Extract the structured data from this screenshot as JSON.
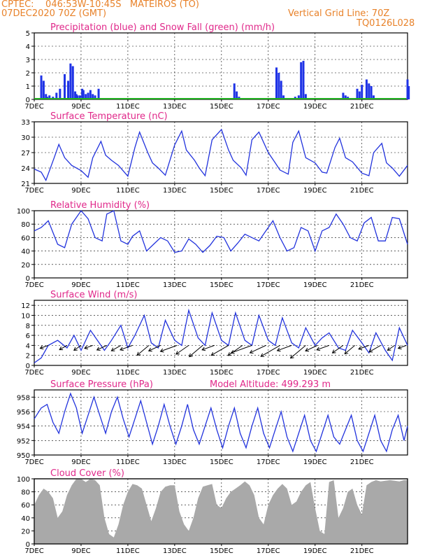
{
  "header": {
    "line1": "CPTEC:    046:53W-10:45S   MATEIROS (TO)",
    "line2_left": "07DEC2020 70Z (GMT)",
    "line2_right": "Vertical Grid Line: 70Z",
    "code": "TQ0126L028"
  },
  "colors": {
    "header": "#e8822a",
    "title": "#e0288a",
    "line": "#2233dd",
    "bar": "#1f33e6",
    "snow": "#20b020",
    "cloud": "#a9a9a9",
    "arrow": "#000000"
  },
  "x_ticks": [
    "7DEC",
    "9DEC",
    "11DEC",
    "13DEC",
    "15DEC",
    "17DEC",
    "19DEC",
    "21DEC"
  ],
  "chart_data": [
    {
      "id": "precip",
      "type": "bar",
      "title": "Precipitation (blue) and Snow Fall (green) (mm/h)",
      "ylim": [
        0,
        5
      ],
      "yticks": [
        "0",
        "1",
        "2",
        "3",
        "4",
        "5"
      ],
      "series": [
        {
          "name": "Precipitation",
          "x": [
            0.3,
            0.4,
            0.5,
            0.55,
            0.65,
            0.8,
            0.95,
            1.1,
            1.3,
            1.45,
            1.55,
            1.65,
            1.75,
            1.8,
            1.85,
            1.95,
            2.05,
            2.1,
            2.2,
            2.3,
            2.4,
            2.5,
            2.6,
            2.75,
            8.55,
            8.65,
            8.75,
            10.35,
            10.45,
            10.55,
            10.65,
            11.15,
            11.3,
            11.4,
            11.5,
            11.6,
            13.2,
            13.3,
            13.4,
            13.8,
            13.9,
            14.0,
            14.2,
            14.3,
            14.4,
            14.5,
            15.95,
            16.0
          ],
          "values": [
            1.8,
            1.4,
            0.4,
            0.2,
            0.3,
            0.2,
            0.5,
            0.8,
            1.9,
            1.4,
            2.7,
            2.5,
            0.6,
            0.4,
            0.3,
            0.3,
            0.8,
            0.7,
            0.4,
            0.5,
            0.7,
            0.4,
            0.3,
            0.8,
            1.2,
            0.6,
            0.2,
            2.4,
            2.0,
            1.4,
            0.3,
            0.2,
            0.3,
            2.8,
            2.9,
            0.4,
            0.5,
            0.3,
            0.2,
            0.8,
            0.6,
            1.1,
            1.5,
            1.2,
            1.0,
            0.3,
            1.5,
            1.0
          ]
        },
        {
          "name": "Snow Fall",
          "x": [
            0,
            15.9
          ],
          "values": [
            0,
            0
          ]
        }
      ]
    },
    {
      "id": "temp",
      "type": "line",
      "title": "Surface Temperature (nC)",
      "ylim": [
        21,
        33
      ],
      "yticks": [
        "21",
        "24",
        "27",
        "30",
        "33"
      ],
      "x": [
        0,
        0.3,
        0.5,
        0.85,
        1.05,
        1.3,
        1.6,
        2.0,
        2.3,
        2.5,
        2.85,
        3.05,
        3.3,
        3.6,
        4.0,
        4.3,
        4.5,
        4.85,
        5.05,
        5.3,
        5.6,
        6.0,
        6.3,
        6.5,
        6.85,
        7.05,
        7.3,
        7.6,
        8.0,
        8.3,
        8.5,
        8.85,
        9.05,
        9.3,
        9.6,
        10.0,
        10.3,
        10.5,
        10.85,
        11.05,
        11.3,
        11.6,
        12.0,
        12.3,
        12.5,
        12.85,
        13.05,
        13.3,
        13.6,
        14.0,
        14.3,
        14.5,
        14.85,
        15.05,
        15.3,
        15.6,
        15.95
      ],
      "values": [
        23.8,
        23.2,
        21.6,
        26.0,
        28.6,
        26.0,
        24.5,
        23.5,
        22.2,
        26.0,
        29.2,
        26.5,
        25.5,
        24.5,
        22.4,
        28.0,
        31.0,
        27.0,
        25.0,
        24.0,
        22.6,
        28.5,
        31.2,
        27.5,
        25.5,
        24.0,
        22.5,
        29.5,
        31.5,
        27.5,
        25.5,
        24.0,
        22.6,
        29.5,
        31.0,
        27.0,
        25.0,
        23.6,
        22.8,
        29.0,
        31.2,
        26.0,
        25.0,
        23.2,
        23.0,
        28.0,
        29.8,
        26.0,
        25.2,
        23.0,
        22.5,
        27.0,
        28.8,
        25.0,
        24.0,
        22.4,
        24.5
      ]
    },
    {
      "id": "rh",
      "type": "line",
      "title": "Relative Humidity (%)",
      "ylim": [
        0,
        100
      ],
      "yticks": [
        "0",
        "20",
        "40",
        "60",
        "80",
        "100"
      ],
      "x": [
        0,
        0.3,
        0.6,
        1.0,
        1.3,
        1.6,
        2.0,
        2.3,
        2.6,
        2.9,
        3.1,
        3.4,
        3.7,
        4.0,
        4.2,
        4.5,
        4.8,
        5.1,
        5.4,
        5.7,
        6.0,
        6.3,
        6.6,
        6.9,
        7.2,
        7.5,
        7.8,
        8.1,
        8.4,
        8.7,
        9.0,
        9.3,
        9.6,
        9.9,
        10.2,
        10.5,
        10.8,
        11.1,
        11.4,
        11.7,
        12.0,
        12.3,
        12.6,
        12.9,
        13.2,
        13.5,
        13.8,
        14.1,
        14.4,
        14.7,
        15.0,
        15.3,
        15.6,
        15.95
      ],
      "values": [
        70,
        75,
        85,
        50,
        45,
        80,
        100,
        88,
        60,
        55,
        95,
        100,
        55,
        50,
        62,
        70,
        40,
        50,
        60,
        55,
        38,
        40,
        58,
        50,
        38,
        48,
        62,
        60,
        40,
        52,
        65,
        60,
        55,
        70,
        85,
        60,
        40,
        45,
        75,
        70,
        40,
        70,
        75,
        95,
        80,
        60,
        55,
        82,
        90,
        55,
        55,
        90,
        88,
        50
      ]
    },
    {
      "id": "wind",
      "type": "line",
      "title": "Surface Wind (m/s)",
      "ylim": [
        0,
        13
      ],
      "yticks": [
        "0",
        "2",
        "4",
        "6",
        "8",
        "10",
        "12"
      ],
      "x": [
        0,
        0.3,
        0.6,
        1.0,
        1.4,
        1.7,
        2.0,
        2.4,
        2.7,
        3.0,
        3.3,
        3.7,
        4.0,
        4.3,
        4.7,
        5.0,
        5.3,
        5.6,
        6.0,
        6.3,
        6.6,
        7.0,
        7.3,
        7.6,
        8.0,
        8.3,
        8.6,
        9.0,
        9.3,
        9.6,
        10.0,
        10.3,
        10.6,
        11.0,
        11.3,
        11.6,
        12.0,
        12.3,
        12.6,
        13.0,
        13.3,
        13.6,
        14.0,
        14.3,
        14.6,
        15.0,
        15.3,
        15.6,
        15.95
      ],
      "values": [
        0.5,
        1.5,
        4.0,
        5.0,
        3.5,
        6.0,
        3.0,
        7.0,
        5.0,
        3.0,
        5.0,
        8.0,
        3.5,
        6.0,
        10.0,
        4.5,
        3.5,
        9.0,
        5.0,
        4.0,
        11.0,
        5.5,
        4.0,
        10.5,
        5.0,
        4.0,
        10.5,
        5.0,
        4.0,
        10.0,
        5.0,
        4.0,
        9.5,
        4.5,
        3.5,
        7.5,
        4.0,
        5.5,
        6.5,
        3.5,
        3.0,
        7.0,
        4.5,
        2.5,
        6.5,
        3.0,
        1.0,
        7.5,
        4.0
      ],
      "arrows_x": [
        0.6,
        1.4,
        2.0,
        2.5,
        3.1,
        3.7,
        4.2,
        4.9,
        5.4,
        6.1,
        6.6,
        7.2,
        7.7,
        8.3,
        8.9,
        9.3,
        9.9,
        10.5,
        11.0,
        11.6,
        12.1,
        12.6,
        13.2,
        13.7,
        14.3,
        14.8,
        15.4,
        15.9
      ],
      "arrows_speed": [
        2,
        2,
        2,
        2,
        3,
        3,
        4,
        5,
        4,
        6,
        5,
        6,
        4,
        7,
        6,
        8,
        6,
        8,
        5,
        7,
        4,
        4,
        4,
        4,
        3,
        4,
        2,
        2
      ]
    },
    {
      "id": "pres",
      "type": "line",
      "title": "Surface Pressure (hPa)",
      "subtitle": "Model Altitude: 499.293 m",
      "ylim": [
        950,
        959
      ],
      "yticks": [
        "950",
        "952",
        "954",
        "956",
        "958"
      ],
      "x": [
        0,
        0.3,
        0.55,
        0.8,
        1.05,
        1.3,
        1.55,
        1.8,
        2.05,
        2.3,
        2.55,
        2.8,
        3.05,
        3.3,
        3.55,
        3.8,
        4.05,
        4.3,
        4.55,
        4.8,
        5.05,
        5.3,
        5.55,
        5.8,
        6.05,
        6.3,
        6.55,
        6.8,
        7.05,
        7.3,
        7.55,
        7.8,
        8.05,
        8.3,
        8.55,
        8.8,
        9.05,
        9.3,
        9.55,
        9.8,
        10.05,
        10.3,
        10.55,
        10.8,
        11.05,
        11.3,
        11.55,
        11.8,
        12.05,
        12.3,
        12.55,
        12.8,
        13.05,
        13.3,
        13.55,
        13.8,
        14.05,
        14.3,
        14.55,
        14.8,
        15.05,
        15.3,
        15.55,
        15.8,
        15.95
      ],
      "values": [
        955,
        956.5,
        957,
        954.5,
        953,
        956,
        958.5,
        956.5,
        953,
        955.5,
        958,
        955.5,
        953,
        956,
        958,
        955,
        952.5,
        955,
        957.5,
        954.5,
        951.5,
        954,
        957,
        954,
        951.5,
        954,
        957,
        953.5,
        951.5,
        954,
        956.5,
        953.5,
        951,
        954,
        956.5,
        953,
        951,
        954,
        956.5,
        953,
        951,
        953.5,
        956,
        952.5,
        950.5,
        953,
        955.5,
        952,
        950.5,
        953,
        955.5,
        952.5,
        951.5,
        953.5,
        955.5,
        952,
        950.5,
        953,
        955.5,
        952,
        950.5,
        953.5,
        955.5,
        952,
        954
      ]
    },
    {
      "id": "cloud",
      "type": "area",
      "title": "Cloud Cover (%)",
      "ylim": [
        0,
        100
      ],
      "yticks": [
        "0",
        "20",
        "40",
        "60",
        "80",
        "100"
      ],
      "x": [
        0,
        0.2,
        0.4,
        0.6,
        0.8,
        1.0,
        1.2,
        1.4,
        1.6,
        1.8,
        2.0,
        2.2,
        2.4,
        2.6,
        2.8,
        3.0,
        3.2,
        3.4,
        3.6,
        3.8,
        4.0,
        4.2,
        4.4,
        4.6,
        4.8,
        5.0,
        5.2,
        5.4,
        5.6,
        5.8,
        6.0,
        6.2,
        6.4,
        6.6,
        6.8,
        7.0,
        7.2,
        7.4,
        7.6,
        7.8,
        8.0,
        8.2,
        8.4,
        8.6,
        8.8,
        9.0,
        9.2,
        9.4,
        9.6,
        9.8,
        10.0,
        10.2,
        10.4,
        10.6,
        10.8,
        11.0,
        11.2,
        11.4,
        11.6,
        11.8,
        12.0,
        12.2,
        12.4,
        12.6,
        12.8,
        13.0,
        13.2,
        13.4,
        13.6,
        13.8,
        14.0,
        14.2,
        14.4,
        14.6,
        14.8,
        15.0,
        15.2,
        15.4,
        15.6,
        15.8,
        15.95
      ],
      "values": [
        60,
        75,
        85,
        80,
        70,
        40,
        50,
        75,
        90,
        100,
        100,
        95,
        100,
        98,
        90,
        40,
        15,
        10,
        30,
        60,
        80,
        92,
        90,
        85,
        60,
        35,
        55,
        80,
        88,
        90,
        90,
        50,
        30,
        20,
        40,
        70,
        88,
        90,
        92,
        60,
        55,
        70,
        80,
        85,
        90,
        96,
        90,
        75,
        40,
        30,
        60,
        75,
        85,
        92,
        85,
        60,
        65,
        80,
        90,
        95,
        55,
        20,
        15,
        95,
        98,
        40,
        55,
        80,
        85,
        60,
        45,
        90,
        95,
        98,
        96,
        97,
        98,
        97,
        96,
        98,
        98
      ]
    }
  ]
}
